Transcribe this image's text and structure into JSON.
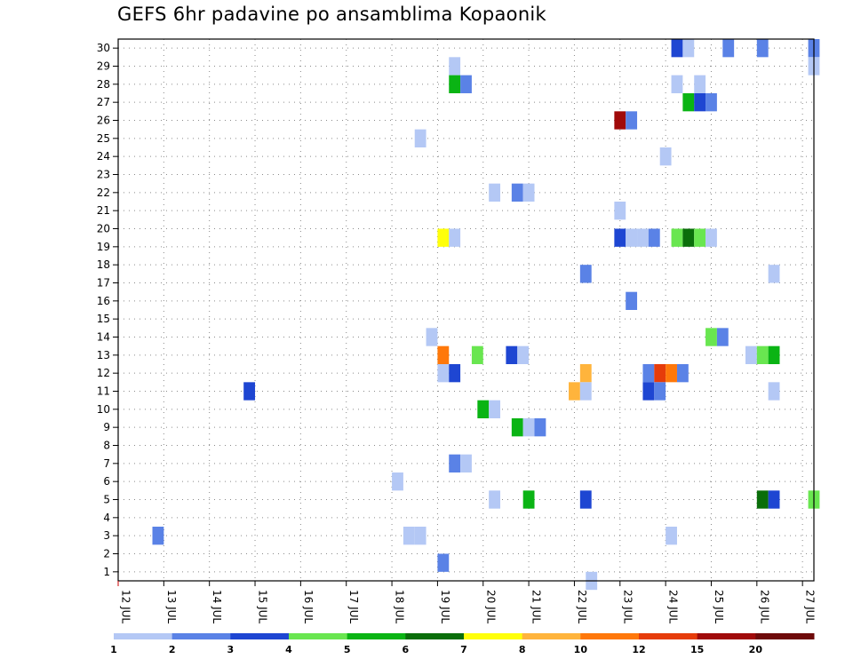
{
  "chart_data": {
    "type": "heatmap",
    "title": "GEFS 6hr padavine po ansamblima Kopaonik",
    "xlabel": "",
    "ylabel": "",
    "x_ticks": [
      "12 JUL",
      "13 JUL",
      "14 JUL",
      "15 JUL",
      "16 JUL",
      "17 JUL",
      "18 JUL",
      "19 JUL",
      "20 JUL",
      "21 JUL",
      "22 JUL",
      "23 JUL",
      "24 JUL",
      "25 JUL",
      "26 JUL",
      "27 JUL"
    ],
    "x_units": "time steps (6hr) from 12 JUL 00Z",
    "xlim": [
      0,
      61
    ],
    "y_ticks": [
      1,
      2,
      3,
      4,
      5,
      6,
      7,
      8,
      9,
      10,
      11,
      12,
      13,
      14,
      15,
      16,
      17,
      18,
      19,
      20,
      21,
      22,
      23,
      24,
      25,
      26,
      27,
      28,
      29,
      30
    ],
    "ylim": [
      0.5,
      30.5
    ],
    "grid": true,
    "colorbar": {
      "labels": [
        "1",
        "2",
        "3",
        "4",
        "5",
        "6",
        "7",
        "8",
        "10",
        "12",
        "15",
        "20"
      ],
      "colors": [
        "#b4c8f5",
        "#5a82e6",
        "#1e46d2",
        "#69e650",
        "#0ab414",
        "#0a6e0a",
        "#ffff0a",
        "#ffb43c",
        "#ff780a",
        "#e63c0a",
        "#a00a0a",
        "#6e0a0a"
      ]
    },
    "points": [
      {
        "x": 49,
        "member": 30,
        "c": 2
      },
      {
        "x": 50,
        "member": 30,
        "c": 0
      },
      {
        "x": 53.5,
        "member": 30,
        "c": 1
      },
      {
        "x": 56.5,
        "member": 30,
        "c": 1
      },
      {
        "x": 61,
        "member": 30,
        "c": 1
      },
      {
        "x": 29.5,
        "member": 29,
        "c": 0
      },
      {
        "x": 61,
        "member": 29,
        "c": 0
      },
      {
        "x": 29.5,
        "member": 28,
        "c": 4
      },
      {
        "x": 30.5,
        "member": 28,
        "c": 1
      },
      {
        "x": 49,
        "member": 28,
        "c": 0
      },
      {
        "x": 51,
        "member": 28,
        "c": 0
      },
      {
        "x": 50,
        "member": 27,
        "c": 4
      },
      {
        "x": 51,
        "member": 27,
        "c": 2
      },
      {
        "x": 52,
        "member": 27,
        "c": 1
      },
      {
        "x": 44,
        "member": 26,
        "c": 10
      },
      {
        "x": 45,
        "member": 26,
        "c": 1
      },
      {
        "x": 26.5,
        "member": 25,
        "c": 0
      },
      {
        "x": 48,
        "member": 24,
        "c": 0
      },
      {
        "x": 33,
        "member": 22,
        "c": 0
      },
      {
        "x": 35,
        "member": 22,
        "c": 1
      },
      {
        "x": 36,
        "member": 22,
        "c": 0
      },
      {
        "x": 44,
        "member": 21,
        "c": 0
      },
      {
        "x": 28.5,
        "member": 19.5,
        "c": 6
      },
      {
        "x": 29.5,
        "member": 19.5,
        "c": 0
      },
      {
        "x": 44,
        "member": 19.5,
        "c": 2
      },
      {
        "x": 45,
        "member": 19.5,
        "c": 0
      },
      {
        "x": 46,
        "member": 19.5,
        "c": 0
      },
      {
        "x": 47,
        "member": 19.5,
        "c": 1
      },
      {
        "x": 49,
        "member": 19.5,
        "c": 3
      },
      {
        "x": 50,
        "member": 19.5,
        "c": 5
      },
      {
        "x": 51,
        "member": 19.5,
        "c": 3
      },
      {
        "x": 52,
        "member": 19.5,
        "c": 0
      },
      {
        "x": 41,
        "member": 17.5,
        "c": 1
      },
      {
        "x": 57.5,
        "member": 17.5,
        "c": 0
      },
      {
        "x": 45,
        "member": 16,
        "c": 1
      },
      {
        "x": 27.5,
        "member": 14,
        "c": 0
      },
      {
        "x": 52,
        "member": 14,
        "c": 3
      },
      {
        "x": 53,
        "member": 14,
        "c": 1
      },
      {
        "x": 28.5,
        "member": 13,
        "c": 8
      },
      {
        "x": 31.5,
        "member": 13,
        "c": 3
      },
      {
        "x": 34.5,
        "member": 13,
        "c": 2
      },
      {
        "x": 35.5,
        "member": 13,
        "c": 0
      },
      {
        "x": 55.5,
        "member": 13,
        "c": 0
      },
      {
        "x": 56.5,
        "member": 13,
        "c": 3
      },
      {
        "x": 57.5,
        "member": 13,
        "c": 4
      },
      {
        "x": 28.5,
        "member": 12,
        "c": 0
      },
      {
        "x": 29.5,
        "member": 12,
        "c": 2
      },
      {
        "x": 41,
        "member": 12,
        "c": 7
      },
      {
        "x": 46.5,
        "member": 12,
        "c": 1
      },
      {
        "x": 47.5,
        "member": 12,
        "c": 9
      },
      {
        "x": 48.5,
        "member": 12,
        "c": 8
      },
      {
        "x": 49.5,
        "member": 12,
        "c": 1
      },
      {
        "x": 11.5,
        "member": 11,
        "c": 2
      },
      {
        "x": 40,
        "member": 11,
        "c": 7
      },
      {
        "x": 41,
        "member": 11,
        "c": 0
      },
      {
        "x": 46.5,
        "member": 11,
        "c": 2
      },
      {
        "x": 47.5,
        "member": 11,
        "c": 1
      },
      {
        "x": 57.5,
        "member": 11,
        "c": 0
      },
      {
        "x": 32,
        "member": 10,
        "c": 4
      },
      {
        "x": 33,
        "member": 10,
        "c": 0
      },
      {
        "x": 35,
        "member": 9,
        "c": 4
      },
      {
        "x": 36,
        "member": 9,
        "c": 0
      },
      {
        "x": 37,
        "member": 9,
        "c": 1
      },
      {
        "x": 29.5,
        "member": 7,
        "c": 1
      },
      {
        "x": 30.5,
        "member": 7,
        "c": 0
      },
      {
        "x": 24.5,
        "member": 6,
        "c": 0
      },
      {
        "x": 33,
        "member": 5,
        "c": 0
      },
      {
        "x": 36,
        "member": 5,
        "c": 4
      },
      {
        "x": 41,
        "member": 5,
        "c": 2
      },
      {
        "x": 56.5,
        "member": 5,
        "c": 5
      },
      {
        "x": 57.5,
        "member": 5,
        "c": 2
      },
      {
        "x": 61,
        "member": 5,
        "c": 3
      },
      {
        "x": 3.5,
        "member": 3,
        "c": 1
      },
      {
        "x": 25.5,
        "member": 3,
        "c": 0
      },
      {
        "x": 26.5,
        "member": 3,
        "c": 0
      },
      {
        "x": 48.5,
        "member": 3,
        "c": 0
      },
      {
        "x": 28.5,
        "member": 1.5,
        "c": 1
      },
      {
        "x": 41.5,
        "member": 0.5,
        "c": 0
      }
    ]
  }
}
